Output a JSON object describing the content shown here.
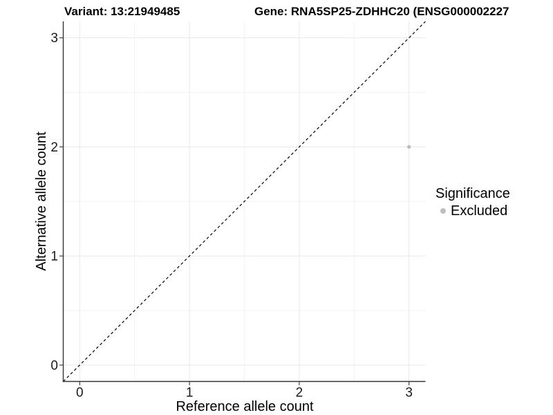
{
  "header": {
    "title_left": "Variant: 13:21949485",
    "title_right": "Gene: RNA5SP25-ZDHHC20 (ENSG000002227"
  },
  "chart_data": {
    "type": "scatter",
    "xlabel": "Reference allele count",
    "ylabel": "Alternative allele count",
    "xlim": [
      -0.15,
      3.15
    ],
    "ylim": [
      -0.15,
      3.15
    ],
    "x_ticks": [
      0,
      1,
      2,
      3
    ],
    "y_ticks": [
      0,
      1,
      2,
      3
    ],
    "x_minor_ticks": [
      0.5,
      1.5,
      2.5
    ],
    "y_minor_ticks": [
      0.5,
      1.5,
      2.5
    ],
    "grid": "on",
    "legend_position": "right",
    "identity_line": {
      "style": "dashed",
      "x1": -0.15,
      "y1": -0.15,
      "x2": 3.15,
      "y2": 3.15,
      "color": "#000000"
    },
    "series": [
      {
        "name": "Excluded",
        "color": "#bdbdbd",
        "point_radius": 2.7,
        "points": [
          {
            "x": 3,
            "y": 2
          }
        ]
      }
    ]
  },
  "legend": {
    "title": "Significance",
    "items": [
      {
        "label": "Excluded",
        "color": "#bdbdbd"
      }
    ]
  },
  "colors": {
    "background": "#ffffff",
    "grid_major": "#e8e8e8",
    "grid_minor": "#f2f2f2",
    "axis_line": "#333333",
    "tick_label": "#1a1a1a",
    "point": "#bdbdbd",
    "identity_line": "#000000"
  }
}
